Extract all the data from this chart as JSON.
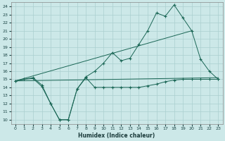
{
  "xlabel": "Humidex (Indice chaleur)",
  "background_color": "#cce8e8",
  "grid_color": "#aacfcf",
  "line_color": "#1a6655",
  "xlim": [
    -0.5,
    23.5
  ],
  "ylim": [
    9.5,
    24.5
  ],
  "xticks": [
    0,
    1,
    2,
    3,
    4,
    5,
    6,
    7,
    8,
    9,
    10,
    11,
    12,
    13,
    14,
    15,
    16,
    17,
    18,
    19,
    20,
    21,
    22,
    23
  ],
  "yticks": [
    10,
    11,
    12,
    13,
    14,
    15,
    16,
    17,
    18,
    19,
    20,
    21,
    22,
    23,
    24
  ],
  "line1_x": [
    0,
    1,
    2,
    3,
    4,
    5,
    6,
    7,
    8,
    9,
    10,
    11,
    12,
    13,
    14,
    15,
    16,
    17,
    18,
    19,
    20,
    21,
    22,
    23
  ],
  "line1_y": [
    14.8,
    15.0,
    15.1,
    14.1,
    12.0,
    10.0,
    10.0,
    13.8,
    15.2,
    14.0,
    14.0,
    14.0,
    14.0,
    14.0,
    14.0,
    14.2,
    14.4,
    14.7,
    14.9,
    15.0,
    15.0,
    15.0,
    15.0,
    15.0
  ],
  "line2_x": [
    0,
    1,
    2,
    3,
    4,
    5,
    6,
    7,
    8,
    9,
    10,
    11,
    12,
    13,
    14,
    15,
    16,
    17,
    18,
    19,
    20,
    21,
    22,
    23
  ],
  "line2_y": [
    14.8,
    15.0,
    15.2,
    14.3,
    12.0,
    10.0,
    10.0,
    13.8,
    15.3,
    16.0,
    17.0,
    18.3,
    17.3,
    17.6,
    19.3,
    21.0,
    23.2,
    22.8,
    24.2,
    22.6,
    21.0,
    17.5,
    16.0,
    15.0
  ],
  "line3_x": [
    0,
    20
  ],
  "line3_y": [
    14.8,
    21.0
  ],
  "line4_x": [
    0,
    23
  ],
  "line4_y": [
    14.8,
    15.2
  ]
}
